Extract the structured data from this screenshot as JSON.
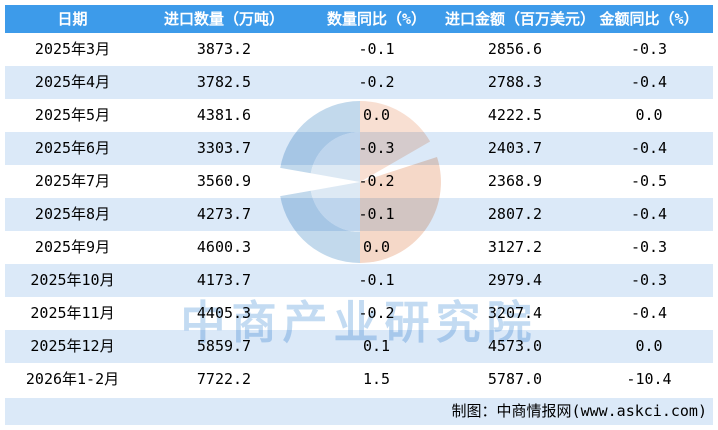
{
  "colors": {
    "header_bg": "#3D9BEA",
    "header_text": "#FFFFFF",
    "zebra_row_bg": "#DBE9F8",
    "body_text": "#000000",
    "watermark_blue": "#C3DBF2",
    "watermark_logo_blue": "#C2D9EC",
    "watermark_logo_orange": "#F6D8C8"
  },
  "table": {
    "headers": [
      "日期",
      "进口数量（万吨）",
      "数量同比（%）",
      "进口金额（百万美元）",
      "金额同比（%）"
    ],
    "rows": [
      [
        "2025年3月",
        "3873.2",
        "-0.1",
        "2856.6",
        "-0.3"
      ],
      [
        "2025年4月",
        "3782.5",
        "-0.2",
        "2788.3",
        "-0.4"
      ],
      [
        "2025年5月",
        "4381.6",
        "0.0",
        "4222.5",
        "0.0"
      ],
      [
        "2025年6月",
        "3303.7",
        "-0.3",
        "2403.7",
        "-0.4"
      ],
      [
        "2025年7月",
        "3560.9",
        "-0.2",
        "2368.9",
        "-0.5"
      ],
      [
        "2025年8月",
        "4273.7",
        "-0.1",
        "2807.2",
        "-0.4"
      ],
      [
        "2025年9月",
        "4600.3",
        "0.0",
        "3127.2",
        "-0.3"
      ],
      [
        "2025年10月",
        "4173.7",
        "-0.1",
        "2979.4",
        "-0.3"
      ],
      [
        "2025年11月",
        "4405.3",
        "-0.2",
        "3207.4",
        "-0.4"
      ],
      [
        "2025年12月",
        "5859.7",
        "0.1",
        "4573.0",
        "0.0"
      ],
      [
        "2026年1-2月",
        "7722.2",
        "1.5",
        "5787.0",
        "-10.4"
      ]
    ]
  },
  "footer": {
    "credit": "制图：中商情报网(www.askci.com)"
  },
  "watermark": {
    "text": "中商产业研究院",
    "logo": "askci-pie-logo"
  },
  "chart_data": {
    "type": "table",
    "title": "",
    "categories": [
      "2025年3月",
      "2025年4月",
      "2025年5月",
      "2025年6月",
      "2025年7月",
      "2025年8月",
      "2025年9月",
      "2025年10月",
      "2025年11月",
      "2025年12月",
      "2026年1-2月"
    ],
    "series": [
      {
        "name": "进口数量（万吨）",
        "values": [
          3873.2,
          3782.5,
          4381.6,
          3303.7,
          3560.9,
          4273.7,
          4600.3,
          4173.7,
          4405.3,
          5859.7,
          7722.2
        ]
      },
      {
        "name": "数量同比（%）",
        "values": [
          -0.1,
          -0.2,
          0.0,
          -0.3,
          -0.2,
          -0.1,
          0.0,
          -0.1,
          -0.2,
          0.1,
          1.5
        ]
      },
      {
        "name": "进口金额（百万美元）",
        "values": [
          2856.6,
          2788.3,
          4222.5,
          2403.7,
          2368.9,
          2807.2,
          3127.2,
          2979.4,
          3207.4,
          4573.0,
          5787.0
        ]
      },
      {
        "name": "金额同比（%）",
        "values": [
          -0.3,
          -0.4,
          0.0,
          -0.4,
          -0.5,
          -0.4,
          -0.3,
          -0.3,
          -0.4,
          0.0,
          -10.4
        ]
      }
    ],
    "layout": {
      "grid": false,
      "legend": "none",
      "note": "data rendered as zebra-striped table image"
    }
  }
}
